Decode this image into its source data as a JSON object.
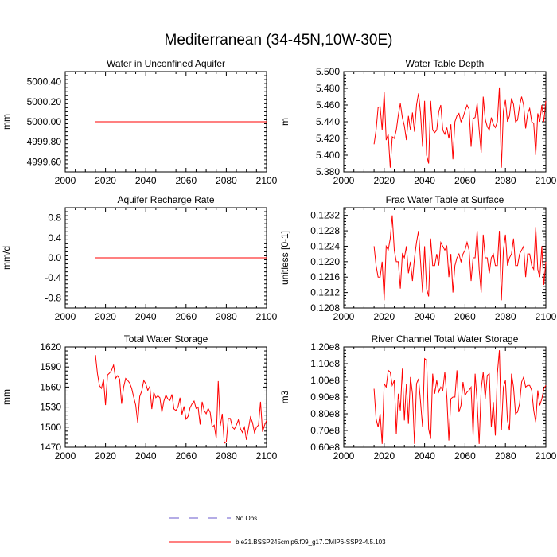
{
  "figure": {
    "title": "Mediterranean (34-45N,10W-30E)",
    "line_color": "#ff0000",
    "obs_color": "#6a5acd",
    "legend": [
      {
        "label": "No Obs",
        "style": "dashed"
      },
      {
        "label": "b.e21.BSSP245cmip6.f09_g17.CMIP6-SSP2-4.5.103",
        "style": "solid"
      }
    ]
  },
  "chart_data": [
    {
      "type": "line",
      "title": "Water in Unconfined Aquifer",
      "ylabel": "mm",
      "xlim": [
        2000,
        2100
      ],
      "ylim": [
        4999.5,
        5000.5
      ],
      "x_ticks": [
        2000,
        2020,
        2040,
        2060,
        2080,
        2100
      ],
      "y_ticks": [
        "4999.60",
        "4999.80",
        "5000.00",
        "5000.20",
        "5000.40"
      ],
      "series": [
        {
          "x_start": 2015,
          "x_end": 2100,
          "values": [
            5000.0,
            5000.0
          ]
        }
      ]
    },
    {
      "type": "line",
      "title": "Water Table Depth",
      "ylabel": "m",
      "xlim": [
        2000,
        2100
      ],
      "ylim": [
        5.38,
        5.5
      ],
      "x_ticks": [
        2000,
        2020,
        2040,
        2060,
        2080,
        2100
      ],
      "y_ticks": [
        "5.380",
        "5.400",
        "5.420",
        "5.440",
        "5.460",
        "5.480",
        "5.500"
      ],
      "series": [
        {
          "x_start": 2015,
          "x_end": 2100,
          "values": [
            5.413,
            5.43,
            5.457,
            5.458,
            5.43,
            5.476,
            5.418,
            5.425,
            5.385,
            5.422,
            5.42,
            5.43,
            5.448,
            5.462,
            5.445,
            5.435,
            5.418,
            5.447,
            5.43,
            5.451,
            5.428,
            5.46,
            5.474,
            5.45,
            5.41,
            5.465,
            5.4,
            5.39,
            5.465,
            5.43,
            5.427,
            5.43,
            5.452,
            5.46,
            5.43,
            5.425,
            5.433,
            5.42,
            5.437,
            5.395,
            5.44,
            5.447,
            5.45,
            5.44,
            5.445,
            5.453,
            5.46,
            5.455,
            5.41,
            5.444,
            5.445,
            5.462,
            5.43,
            5.403,
            5.47,
            5.443,
            5.434,
            5.43,
            5.445,
            5.437,
            5.433,
            5.44,
            5.481,
            5.385,
            5.453,
            5.466,
            5.44,
            5.447,
            5.468,
            5.461,
            5.44,
            5.442,
            5.459,
            5.47,
            5.46,
            5.432,
            5.45,
            5.456,
            5.44,
            5.438,
            5.4,
            5.45,
            5.44,
            5.46,
            5.44,
            5.465
          ]
        }
      ]
    },
    {
      "type": "line",
      "title": "Aquifer Recharge Rate",
      "ylabel": "mm/d",
      "xlim": [
        2000,
        2100
      ],
      "ylim": [
        -1.0,
        1.0
      ],
      "x_ticks": [
        2000,
        2020,
        2040,
        2060,
        2080,
        2100
      ],
      "y_ticks": [
        "-0.8",
        "-0.4",
        "0.0",
        "0.4",
        "0.8"
      ],
      "series": [
        {
          "x_start": 2015,
          "x_end": 2100,
          "values": [
            0.0,
            0.0
          ]
        }
      ]
    },
    {
      "type": "line",
      "title": "Frac Water Table at Surface",
      "ylabel": "unitless [0-1]",
      "xlim": [
        2000,
        2100
      ],
      "ylim": [
        0.1208,
        0.1234
      ],
      "x_ticks": [
        2000,
        2020,
        2040,
        2060,
        2080,
        2100
      ],
      "y_ticks": [
        "0.1208",
        "0.1212",
        "0.1216",
        "0.1220",
        "0.1224",
        "0.1228",
        "0.1232"
      ],
      "series": [
        {
          "x_start": 2015,
          "x_end": 2100,
          "values": [
            0.1224,
            0.1219,
            0.1216,
            0.1216,
            0.122,
            0.121,
            0.1224,
            0.1223,
            0.1226,
            0.1232,
            0.1223,
            0.122,
            0.122,
            0.1213,
            0.1222,
            0.1221,
            0.1224,
            0.1217,
            0.122,
            0.1215,
            0.1221,
            0.1225,
            0.1228,
            0.122,
            0.1212,
            0.1224,
            0.1213,
            0.1211,
            0.1226,
            0.1219,
            0.1219,
            0.1222,
            0.1219,
            0.1225,
            0.1224,
            0.1223,
            0.1224,
            0.1216,
            0.1222,
            0.1212,
            0.1219,
            0.1221,
            0.1222,
            0.122,
            0.1222,
            0.1223,
            0.1225,
            0.1223,
            0.1215,
            0.1221,
            0.1221,
            0.1228,
            0.1218,
            0.1212,
            0.1227,
            0.1221,
            0.1221,
            0.1217,
            0.1221,
            0.1222,
            0.1219,
            0.1219,
            0.1228,
            0.121,
            0.1223,
            0.1227,
            0.1219,
            0.1221,
            0.1222,
            0.1226,
            0.1219,
            0.1219,
            0.1222,
            0.1223,
            0.1224,
            0.1216,
            0.1222,
            0.1222,
            0.1219,
            0.1218,
            0.1229,
            0.1218,
            0.1216,
            0.1224,
            0.1214,
            0.122
          ]
        }
      ]
    },
    {
      "type": "line",
      "title": "Total Water Storage",
      "ylabel": "mm",
      "xlim": [
        2000,
        2100
      ],
      "ylim": [
        1470,
        1620
      ],
      "x_ticks": [
        2000,
        2020,
        2040,
        2060,
        2080,
        2100
      ],
      "y_ticks": [
        "1470",
        "1500",
        "1530",
        "1560",
        "1590",
        "1620"
      ],
      "series": [
        {
          "x_start": 2015,
          "x_end": 2100,
          "values": [
            1608,
            1580,
            1562,
            1558,
            1572,
            1533,
            1578,
            1581,
            1585,
            1593,
            1573,
            1577,
            1572,
            1535,
            1560,
            1573,
            1570,
            1566,
            1558,
            1545,
            1533,
            1507,
            1546,
            1554,
            1570,
            1565,
            1555,
            1561,
            1527,
            1552,
            1544,
            1547,
            1544,
            1522,
            1539,
            1548,
            1542,
            1540,
            1549,
            1527,
            1525,
            1530,
            1544,
            1519,
            1531,
            1512,
            1516,
            1529,
            1535,
            1539,
            1528,
            1530,
            1504,
            1538,
            1525,
            1520,
            1528,
            1522,
            1500,
            1503,
            1483,
            1569,
            1502,
            1520,
            1476,
            1478,
            1513,
            1513,
            1500,
            1497,
            1503,
            1511,
            1498,
            1492,
            1500,
            1481,
            1498,
            1515,
            1507,
            1492,
            1500,
            1503,
            1538,
            1493,
            1503,
            1510
          ]
        }
      ]
    },
    {
      "type": "line",
      "title": "River Channel Total Water Storage",
      "ylabel": "m3",
      "xlim": [
        2000,
        2100
      ],
      "ylim": [
        60000000,
        120000000
      ],
      "x_ticks": [
        2000,
        2020,
        2040,
        2060,
        2080,
        2100
      ],
      "y_ticks": [
        "0.60e8",
        "0.70e8",
        "0.80e8",
        "0.90e8",
        "1.00e8",
        "1.10e8",
        "1.20e8"
      ],
      "series": [
        {
          "x_start": 2015,
          "x_end": 2100,
          "values": [
            95000000,
            77000000,
            72000000,
            80000000,
            62000000,
            98000000,
            96000000,
            106000000,
            105000000,
            97000000,
            100000000,
            68000000,
            92000000,
            82000000,
            107000000,
            76000000,
            98000000,
            74000000,
            102000000,
            92000000,
            62000000,
            98000000,
            101000000,
            87000000,
            72000000,
            113000000,
            112000000,
            71000000,
            65000000,
            104000000,
            92000000,
            100000000,
            93000000,
            96000000,
            94000000,
            105000000,
            90000000,
            64000000,
            89000000,
            90000000,
            90000000,
            106000000,
            81000000,
            85000000,
            99000000,
            91000000,
            93000000,
            94000000,
            96000000,
            67000000,
            104000000,
            87000000,
            62000000,
            95000000,
            105000000,
            89000000,
            103000000,
            104000000,
            72000000,
            87000000,
            67000000,
            104000000,
            118000000,
            70000000,
            96000000,
            100000000,
            76000000,
            70000000,
            104000000,
            96000000,
            80000000,
            81000000,
            86000000,
            99000000,
            102000000,
            96000000,
            97000000,
            97000000,
            94000000,
            82000000,
            75000000,
            94000000,
            85000000,
            89000000,
            95000000,
            97000000
          ]
        }
      ]
    }
  ]
}
